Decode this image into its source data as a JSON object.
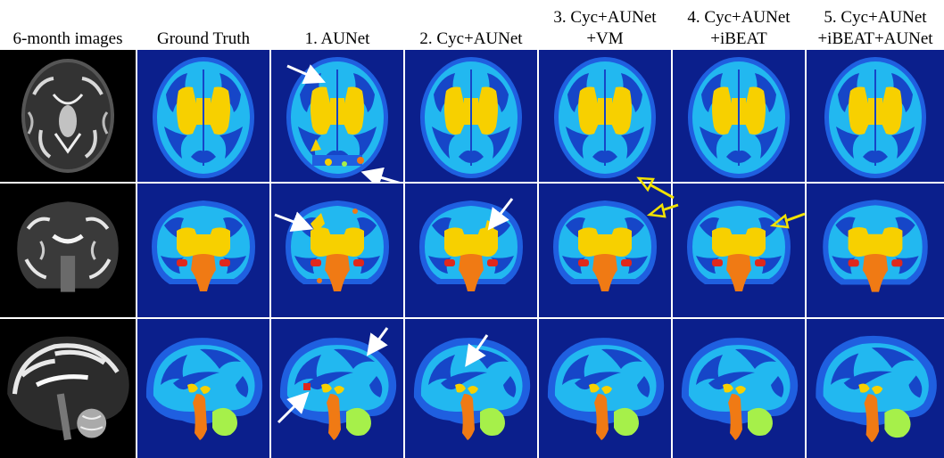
{
  "columns": [
    {
      "line1": "6-month images",
      "line2": ""
    },
    {
      "line1": "Ground Truth",
      "line2": ""
    },
    {
      "line1": "1. AUNet",
      "line2": ""
    },
    {
      "line1": "2. Cyc+AUNet",
      "line2": ""
    },
    {
      "line1": "3. Cyc+AUNet",
      "line2": "+VM"
    },
    {
      "line1": "4. Cyc+AUNet",
      "line2": "+iBEAT"
    },
    {
      "line1": "5. Cyc+AUNet",
      "line2": "+iBEAT+AUNet"
    }
  ],
  "rows": [
    "axial",
    "coronal",
    "sagittal"
  ],
  "colors": {
    "background": "#0b1f8c",
    "csf_blue": "#1f5fe0",
    "gray_matter": "#22b8f0",
    "white_matter": "#1646c8",
    "ventricles": "#f7d000",
    "brainstem": "#f07a14",
    "cerebellum": "#a6f04a",
    "red_region": "#e0281c",
    "arrow_white": "#ffffff",
    "arrow_yellow": "#f2e200"
  }
}
